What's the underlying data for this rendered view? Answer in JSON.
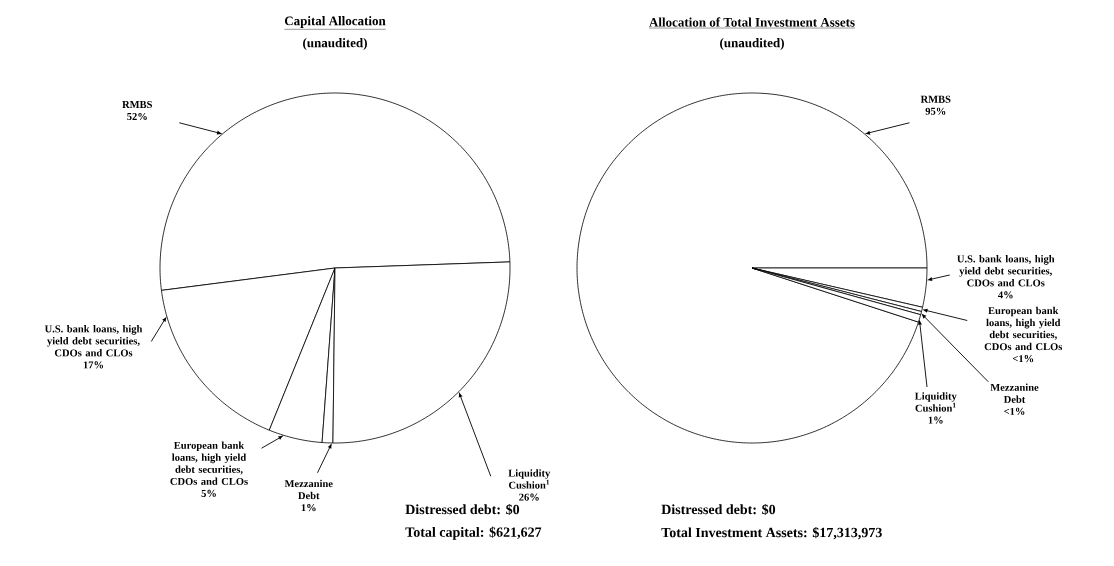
{
  "chart_data": [
    {
      "type": "pie",
      "title": "Capital Allocation",
      "subtitle": "(unaudited)",
      "categories": [
        "RMBS",
        "U.S. bank loans, high yield debt securities, CDOs and CLOs",
        "European bank loans, high yield debt securities, CDOs and CLOs",
        "Mezzanine Debt",
        "Liquidity Cushion$^{1}$"
      ],
      "values": [
        52,
        17,
        5,
        1,
        26
      ],
      "value_labels": [
        "52%",
        "17%",
        "5%",
        "1%",
        "26%"
      ],
      "colors": [
        "#ffffff",
        "#ffffff",
        "#ffffff",
        "#ffffff",
        "#ffffff"
      ],
      "annotations": [
        "Distressed debt:  $0",
        "Total capital:  $621,627"
      ]
    },
    {
      "type": "pie",
      "title": "Allocation of Total Investment Assets",
      "subtitle": "(unaudited)",
      "categories": [
        "RMBS",
        "U.S. bank loans, high yield debt securities, CDOs and CLOs",
        "European bank loans, high yield debt securities, CDOs and CLOs",
        "Mezzanine Debt",
        "Liquidity Cushion$^{1}$"
      ],
      "values": [
        95,
        3.6,
        0.4,
        0.3,
        0.7
      ],
      "value_labels": [
        "95%",
        "4%",
        "<1%",
        "<1%",
        "1%"
      ],
      "colors": [
        "#ffffff",
        "#ffffff",
        "#ffffff",
        "#ffffff",
        "#ffffff"
      ],
      "annotations": [
        "Distressed debt:  $0",
        "Total Investment Assets:  $17,313,973"
      ]
    }
  ]
}
